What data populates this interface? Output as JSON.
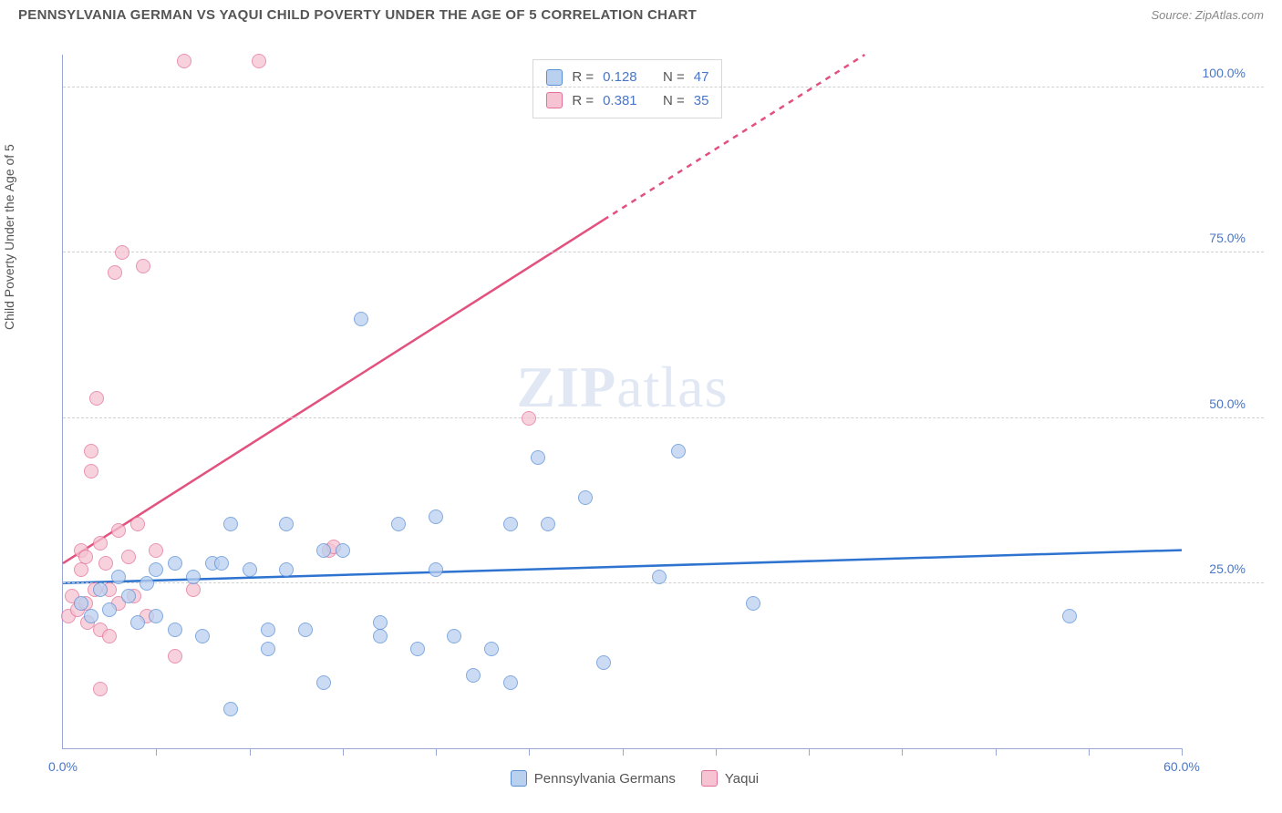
{
  "header": {
    "title": "PENNSYLVANIA GERMAN VS YAQUI CHILD POVERTY UNDER THE AGE OF 5 CORRELATION CHART",
    "source_prefix": "Source: ",
    "source_name": "ZipAtlas.com"
  },
  "y_axis_label": "Child Poverty Under the Age of 5",
  "watermark": {
    "bold": "ZIP",
    "light": "atlas"
  },
  "colors": {
    "series_a_fill": "#b9d0ef",
    "series_a_stroke": "#5a8fd6",
    "series_b_fill": "#f5c3d1",
    "series_b_stroke": "#e27099",
    "trend_a": "#2e73d0",
    "trend_b": "#e3517e",
    "grid": "#d0d0d0",
    "axis": "#9aa7d4",
    "tick_text": "#4a76c7"
  },
  "axes": {
    "xlim": [
      0,
      60
    ],
    "ylim": [
      0,
      105
    ],
    "y_ticks": [
      {
        "v": 25,
        "label": "25.0%"
      },
      {
        "v": 50,
        "label": "50.0%"
      },
      {
        "v": 75,
        "label": "75.0%"
      },
      {
        "v": 100,
        "label": "100.0%"
      }
    ],
    "x_ticks_minor": [
      5,
      10,
      15,
      20,
      25,
      30,
      35,
      40,
      45,
      50,
      55,
      60
    ],
    "x_labels": [
      {
        "v": 0,
        "label": "0.0%"
      },
      {
        "v": 60,
        "label": "60.0%"
      }
    ]
  },
  "stats": {
    "rows": [
      {
        "color_fill": "#b9d0ef",
        "color_stroke": "#5a8fd6",
        "r_label": "R =",
        "r_val": "0.128",
        "n_label": "N =",
        "n_val": "47"
      },
      {
        "color_fill": "#f5c3d1",
        "color_stroke": "#e27099",
        "r_label": "R =",
        "r_val": "0.381",
        "n_label": "N =",
        "n_val": "35"
      }
    ]
  },
  "bottom_legend": [
    {
      "color_fill": "#b9d0ef",
      "color_stroke": "#5a8fd6",
      "label": "Pennsylvania Germans"
    },
    {
      "color_fill": "#f5c3d1",
      "color_stroke": "#e27099",
      "label": "Yaqui"
    }
  ],
  "trend_lines": {
    "a": {
      "x1": 0,
      "y1": 25,
      "x2": 60,
      "y2": 30,
      "color": "#2e73d0"
    },
    "b_solid": {
      "x1": 0,
      "y1": 28,
      "x2": 29,
      "y2": 80,
      "color": "#e3517e"
    },
    "b_dash": {
      "x1": 29,
      "y1": 80,
      "x2": 43,
      "y2": 105,
      "color": "#e3517e"
    }
  },
  "series_a": [
    {
      "x": 1,
      "y": 22
    },
    {
      "x": 1.5,
      "y": 20
    },
    {
      "x": 2,
      "y": 24
    },
    {
      "x": 2.5,
      "y": 21
    },
    {
      "x": 3,
      "y": 26
    },
    {
      "x": 3.5,
      "y": 23
    },
    {
      "x": 4,
      "y": 19
    },
    {
      "x": 4.5,
      "y": 25
    },
    {
      "x": 5,
      "y": 27
    },
    {
      "x": 5,
      "y": 20
    },
    {
      "x": 6,
      "y": 18
    },
    {
      "x": 6,
      "y": 28
    },
    {
      "x": 7,
      "y": 26
    },
    {
      "x": 7.5,
      "y": 17
    },
    {
      "x": 8,
      "y": 28
    },
    {
      "x": 8.5,
      "y": 28
    },
    {
      "x": 9,
      "y": 6
    },
    {
      "x": 9,
      "y": 34
    },
    {
      "x": 10,
      "y": 27
    },
    {
      "x": 11,
      "y": 15
    },
    {
      "x": 11,
      "y": 18
    },
    {
      "x": 12,
      "y": 27
    },
    {
      "x": 12,
      "y": 34
    },
    {
      "x": 13,
      "y": 18
    },
    {
      "x": 14,
      "y": 30
    },
    {
      "x": 14,
      "y": 10
    },
    {
      "x": 15,
      "y": 30
    },
    {
      "x": 16,
      "y": 65
    },
    {
      "x": 17,
      "y": 17
    },
    {
      "x": 17,
      "y": 19
    },
    {
      "x": 18,
      "y": 34
    },
    {
      "x": 19,
      "y": 15
    },
    {
      "x": 20,
      "y": 27
    },
    {
      "x": 20,
      "y": 35
    },
    {
      "x": 21,
      "y": 17
    },
    {
      "x": 22,
      "y": 11
    },
    {
      "x": 23,
      "y": 15
    },
    {
      "x": 24,
      "y": 34
    },
    {
      "x": 24,
      "y": 10
    },
    {
      "x": 25.5,
      "y": 44
    },
    {
      "x": 26,
      "y": 34
    },
    {
      "x": 28,
      "y": 38
    },
    {
      "x": 29,
      "y": 13
    },
    {
      "x": 32,
      "y": 26
    },
    {
      "x": 33,
      "y": 45
    },
    {
      "x": 37,
      "y": 22
    },
    {
      "x": 54,
      "y": 20
    }
  ],
  "series_b": [
    {
      "x": 0.3,
      "y": 20
    },
    {
      "x": 0.5,
      "y": 23
    },
    {
      "x": 0.8,
      "y": 21
    },
    {
      "x": 1,
      "y": 27
    },
    {
      "x": 1,
      "y": 30
    },
    {
      "x": 1.2,
      "y": 29
    },
    {
      "x": 1.2,
      "y": 22
    },
    {
      "x": 1.3,
      "y": 19
    },
    {
      "x": 1.5,
      "y": 42
    },
    {
      "x": 1.5,
      "y": 45
    },
    {
      "x": 1.7,
      "y": 24
    },
    {
      "x": 1.8,
      "y": 53
    },
    {
      "x": 2,
      "y": 18
    },
    {
      "x": 2,
      "y": 31
    },
    {
      "x": 2.3,
      "y": 28
    },
    {
      "x": 2.5,
      "y": 24
    },
    {
      "x": 2.5,
      "y": 17
    },
    {
      "x": 2.8,
      "y": 72
    },
    {
      "x": 3,
      "y": 22
    },
    {
      "x": 3,
      "y": 33
    },
    {
      "x": 3.2,
      "y": 75
    },
    {
      "x": 3.5,
      "y": 29
    },
    {
      "x": 3.8,
      "y": 23
    },
    {
      "x": 4,
      "y": 34
    },
    {
      "x": 4.3,
      "y": 73
    },
    {
      "x": 4.5,
      "y": 20
    },
    {
      "x": 5,
      "y": 30
    },
    {
      "x": 2,
      "y": 9
    },
    {
      "x": 6,
      "y": 14
    },
    {
      "x": 6.5,
      "y": 104
    },
    {
      "x": 7,
      "y": 24
    },
    {
      "x": 10.5,
      "y": 104
    },
    {
      "x": 14.3,
      "y": 30
    },
    {
      "x": 14.5,
      "y": 30.5
    },
    {
      "x": 25,
      "y": 50
    }
  ]
}
